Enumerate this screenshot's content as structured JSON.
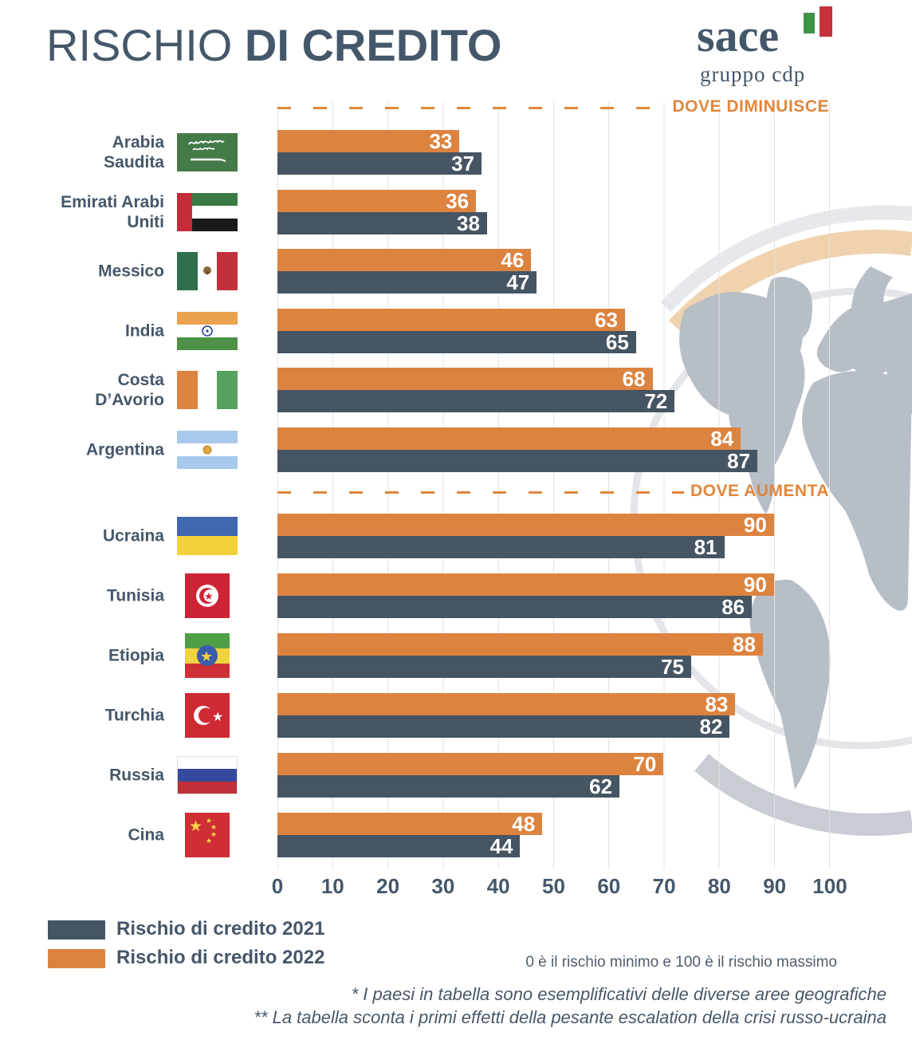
{
  "title": {
    "normal": "RISCHIO ",
    "bold": "DI CREDITO"
  },
  "logo": {
    "name": "sace",
    "subtitle": "gruppo cdp"
  },
  "sections": {
    "decrease_label": "DOVE DIMINUISCE",
    "increase_label": "DOVE AUMENTA"
  },
  "colors": {
    "bar_2021": "#465563",
    "bar_2022": "#dd8340",
    "accent_orange": "#df873c",
    "slate_text": "#45576a"
  },
  "legend": [
    {
      "label": "Rischio di credito 2021",
      "color": "#465563"
    },
    {
      "label": "Rischio di credito 2022",
      "color": "#dd8340"
    }
  ],
  "note": "0 è il rischio minimo e 100 è il rischio massimo",
  "footnotes": [
    "* I paesi in tabella sono esemplificativi delle diverse aree geografiche",
    "** La tabella sconta i primi effetti della pesante escalation della crisi russo-ucraina"
  ],
  "countries": [
    {
      "name": "Arabia Saudita",
      "display": "Arabia\nSaudita",
      "flag": "arabia-saudita",
      "group": "dove_diminuisce",
      "v2022": 33,
      "v2021": 37
    },
    {
      "name": "Emirati Arabi Uniti",
      "display": "Emirati Arabi\nUniti",
      "flag": "emirati-arabi-uniti",
      "group": "dove_diminuisce",
      "v2022": 36,
      "v2021": 38
    },
    {
      "name": "Messico",
      "display": "Messico",
      "flag": "messico",
      "group": "dove_diminuisce",
      "v2022": 46,
      "v2021": 47
    },
    {
      "name": "India",
      "display": "India",
      "flag": "india",
      "group": "dove_diminuisce",
      "v2022": 63,
      "v2021": 65
    },
    {
      "name": "Costa D’Avorio",
      "display": "Costa\nD’Avorio",
      "flag": "costa-davorio",
      "group": "dove_diminuisce",
      "v2022": 68,
      "v2021": 72
    },
    {
      "name": "Argentina",
      "display": "Argentina",
      "flag": "argentina",
      "group": "dove_diminuisce",
      "v2022": 84,
      "v2021": 87
    },
    {
      "name": "Ucraina",
      "display": "Ucraina",
      "flag": "ucraina",
      "group": "dove_aumenta",
      "v2022": 90,
      "v2021": 81
    },
    {
      "name": "Tunisia",
      "display": "Tunisia",
      "flag": "tunisia",
      "group": "dove_aumenta",
      "v2022": 90,
      "v2021": 86
    },
    {
      "name": "Etiopia",
      "display": "Etiopia",
      "flag": "etiopia",
      "group": "dove_aumenta",
      "v2022": 88,
      "v2021": 75
    },
    {
      "name": "Turchia",
      "display": "Turchia",
      "flag": "turchia",
      "group": "dove_aumenta",
      "v2022": 83,
      "v2021": 82
    },
    {
      "name": "Russia",
      "display": "Russia",
      "flag": "russia",
      "group": "dove_aumenta",
      "v2022": 70,
      "v2021": 62
    },
    {
      "name": "Cina",
      "display": "Cina",
      "flag": "cina",
      "group": "dove_aumenta",
      "v2022": 48,
      "v2021": 44
    }
  ],
  "chart_data": {
    "type": "bar",
    "orientation": "horizontal",
    "title": "RISCHIO DI CREDITO",
    "xlabel": "",
    "ylabel": "",
    "xlim": [
      0,
      100
    ],
    "ticks": [
      0,
      10,
      20,
      30,
      40,
      50,
      60,
      70,
      80,
      90,
      100
    ],
    "grid": true,
    "legend_position": "bottom-left",
    "categories": [
      "Arabia Saudita",
      "Emirati Arabi Uniti",
      "Messico",
      "India",
      "Costa D’Avorio",
      "Argentina",
      "Ucraina",
      "Tunisia",
      "Etiopia",
      "Turchia",
      "Russia",
      "Cina"
    ],
    "series": [
      {
        "name": "Rischio di credito 2021",
        "color": "#465563",
        "values": [
          37,
          38,
          47,
          65,
          72,
          87,
          81,
          86,
          75,
          82,
          62,
          44
        ]
      },
      {
        "name": "Rischio di credito 2022",
        "color": "#dd8340",
        "values": [
          33,
          36,
          46,
          63,
          68,
          84,
          90,
          90,
          88,
          83,
          70,
          48
        ]
      }
    ],
    "annotations": [
      {
        "label": "DOVE DIMINUISCE",
        "applies_to": [
          "Arabia Saudita",
          "Emirati Arabi Uniti",
          "Messico",
          "India",
          "Costa D’Avorio",
          "Argentina"
        ]
      },
      {
        "label": "DOVE AUMENTA",
        "applies_to": [
          "Ucraina",
          "Tunisia",
          "Etiopia",
          "Turchia",
          "Russia",
          "Cina"
        ]
      }
    ]
  }
}
